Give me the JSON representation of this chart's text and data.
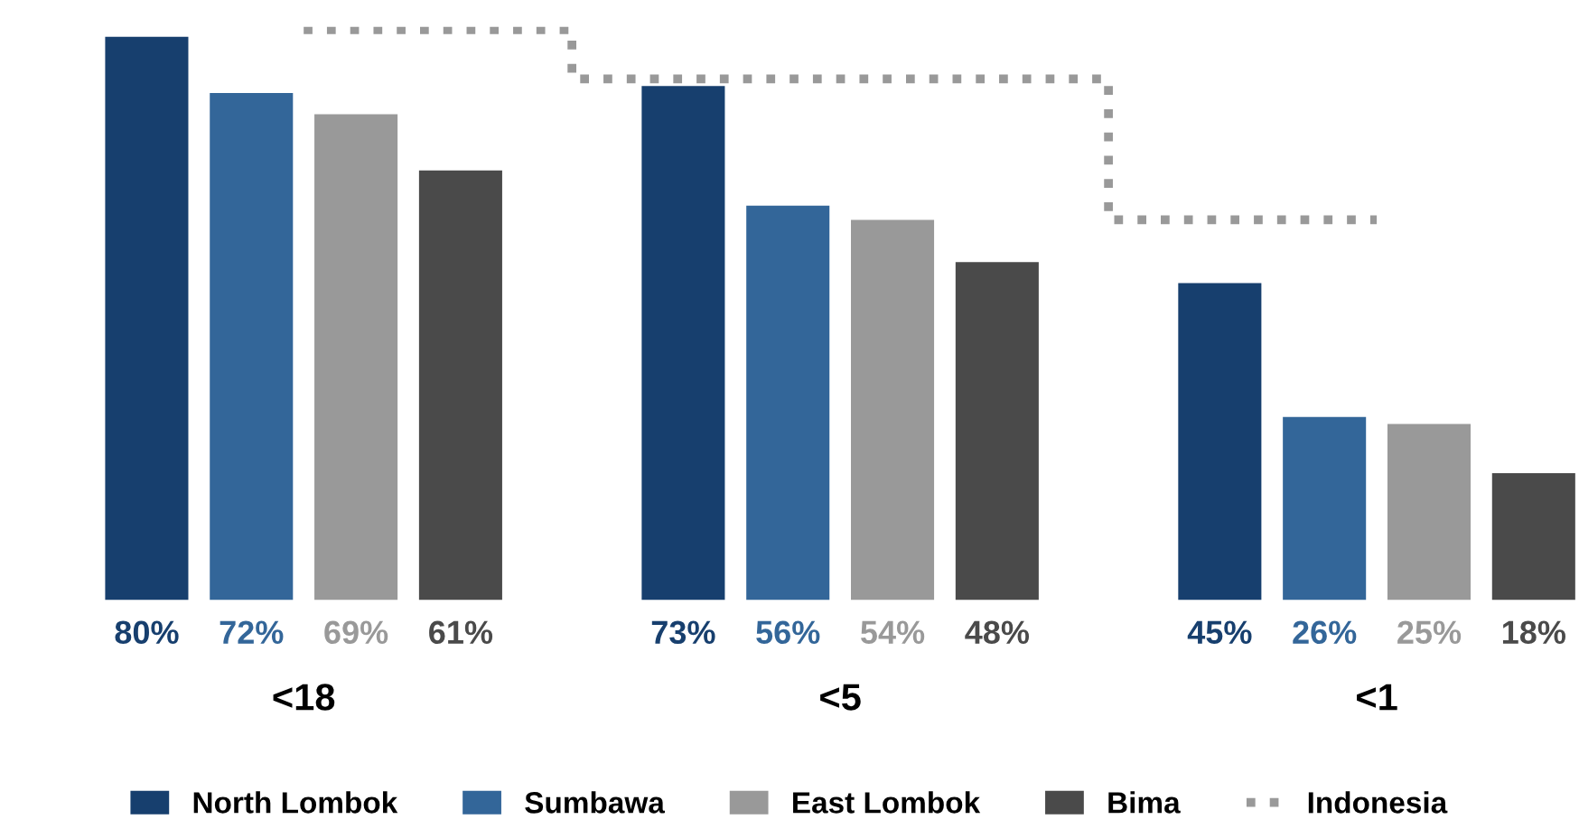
{
  "chart_data": {
    "type": "bar",
    "categories": [
      "<18",
      "<5",
      "<1"
    ],
    "series": [
      {
        "name": "North Lombok",
        "color": "#173f6e",
        "values": [
          80,
          73,
          45
        ],
        "value_labels": [
          "80%",
          "73%",
          "45%"
        ]
      },
      {
        "name": "Sumbawa",
        "color": "#336699",
        "values": [
          72,
          56,
          26
        ],
        "value_labels": [
          "72%",
          "56%",
          "26%"
        ]
      },
      {
        "name": "East Lombok",
        "color": "#999999",
        "values": [
          69,
          54,
          25
        ],
        "value_labels": [
          "69%",
          "54%",
          "25%"
        ]
      },
      {
        "name": "Bima",
        "color": "#4a4a4a",
        "values": [
          61,
          48,
          18
        ],
        "value_labels": [
          "61%",
          "48%",
          "18%"
        ]
      },
      {
        "name": "Indonesia",
        "type": "step",
        "color": "#999999",
        "line_style": "dotted",
        "values": [
          81,
          74,
          54
        ]
      }
    ],
    "legend": "bottom"
  }
}
